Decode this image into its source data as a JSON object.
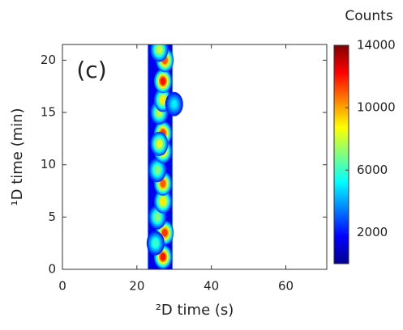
{
  "chart_data": {
    "type": "contour",
    "title": "Counts",
    "annotation": "(c)",
    "x_label": "²D time (s)",
    "y_label": "¹D time (min)",
    "xlim": [
      0,
      71
    ],
    "ylim": [
      0,
      21.5
    ],
    "xticks": [
      0,
      20,
      40,
      60
    ],
    "yticks": [
      0,
      5,
      10,
      15,
      20
    ],
    "zlim": [
      0,
      14000
    ],
    "zticks": [
      2000,
      6000,
      10000,
      14000
    ],
    "colormap": "jet",
    "band": {
      "x": [
        23,
        29.5
      ],
      "value": 1500
    },
    "peaks": {
      "x": [
        27,
        27.5,
        25.5,
        27,
        27,
        25.5,
        27,
        27,
        26,
        27,
        27,
        27.5,
        26,
        30,
        25,
        26
      ],
      "y": [
        1.2,
        3.5,
        5,
        6.5,
        8.2,
        9.5,
        11.3,
        13,
        15,
        16.2,
        18,
        20,
        21,
        15.8,
        2.5,
        12
      ],
      "z": [
        12000,
        11500,
        7000,
        9000,
        11000,
        7000,
        10000,
        11500,
        8000,
        9000,
        12000,
        11000,
        8000,
        5000,
        6000,
        8500
      ]
    }
  }
}
